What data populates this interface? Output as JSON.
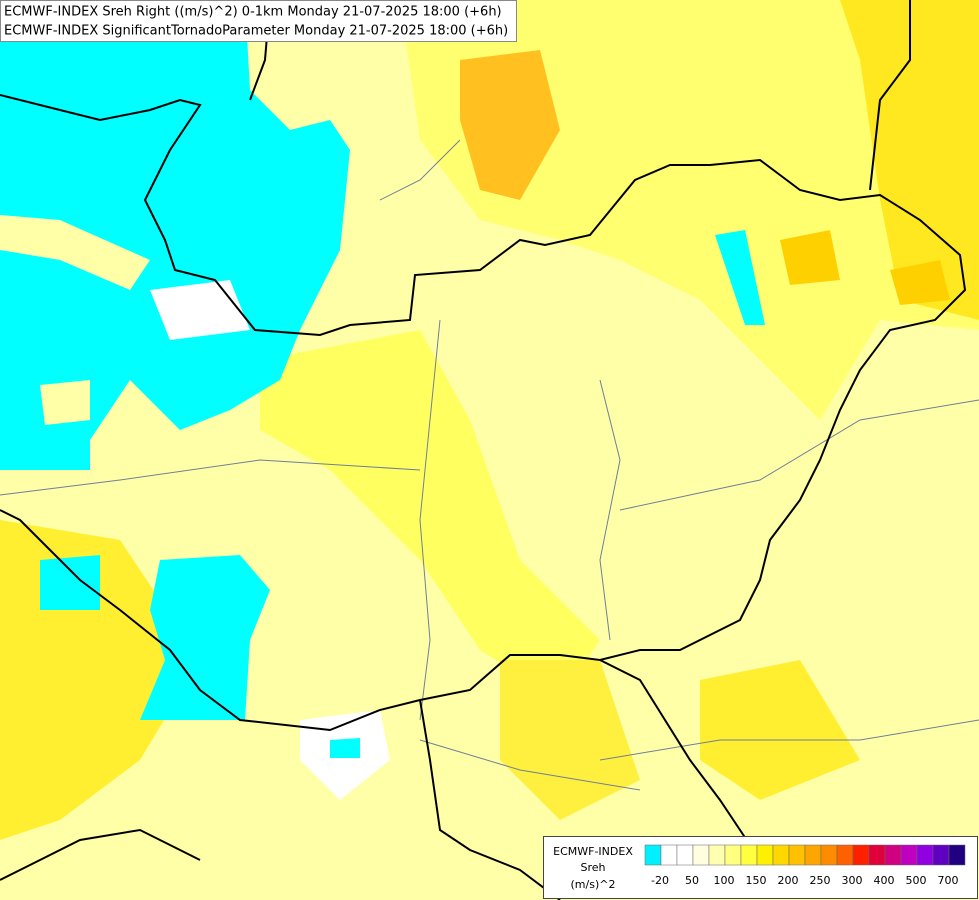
{
  "header": {
    "line1": "ECMWF-INDEX Sreh Right ((m/s)^2) 0-1km Monday 21-07-2025 18:00 (+6h)",
    "line2": "ECMWF-INDEX SignificantTornadoParameter Monday 21-07-2025 18:00 (+6h)"
  },
  "legend": {
    "title": "ECMWF-INDEX",
    "variable": "Sreh",
    "unit": "(m/s)^2",
    "colors": [
      "#00f0ff",
      "#ffffff",
      "#ffffff",
      "#ffffe0",
      "#ffffb0",
      "#ffff80",
      "#ffff40",
      "#ffef00",
      "#ffd700",
      "#ffc000",
      "#ffa500",
      "#ff8c00",
      "#ff6000",
      "#ff2000",
      "#e0003c",
      "#d00080",
      "#c000c0",
      "#9000e0",
      "#6000c0",
      "#200080"
    ],
    "labels": [
      "-20",
      "50",
      "100",
      "150",
      "200",
      "250",
      "300",
      "400",
      "500",
      "700"
    ]
  }
}
